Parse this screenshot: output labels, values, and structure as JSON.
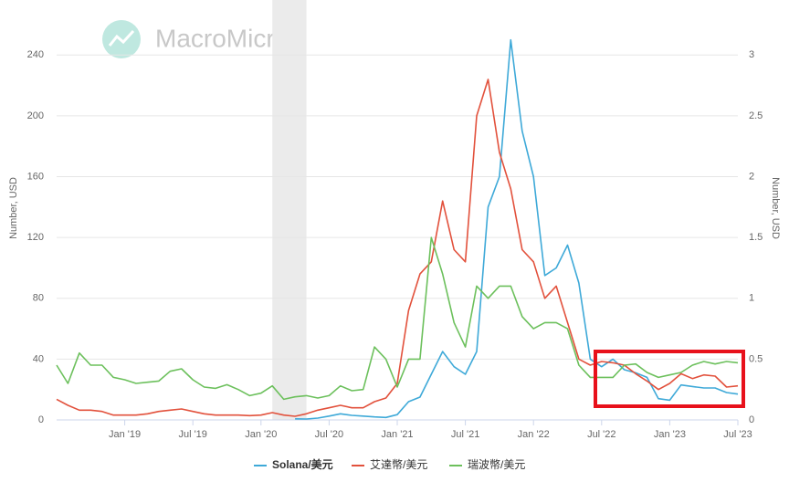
{
  "chart_data": {
    "type": "line",
    "watermark": "MacroMicro",
    "ylabel": "Number, USD",
    "y2label": "Number, USD",
    "x": [
      "2018-07",
      "2018-08",
      "2018-09",
      "2018-10",
      "2018-11",
      "2018-12",
      "2019-01",
      "2019-02",
      "2019-03",
      "2019-04",
      "2019-05",
      "2019-06",
      "2019-07",
      "2019-08",
      "2019-09",
      "2019-10",
      "2019-11",
      "2019-12",
      "2020-01",
      "2020-02",
      "2020-03",
      "2020-04",
      "2020-05",
      "2020-06",
      "2020-07",
      "2020-08",
      "2020-09",
      "2020-10",
      "2020-11",
      "2020-12",
      "2021-01",
      "2021-02",
      "2021-03",
      "2021-04",
      "2021-05",
      "2021-06",
      "2021-07",
      "2021-08",
      "2021-09",
      "2021-10",
      "2021-11",
      "2021-12",
      "2022-01",
      "2022-02",
      "2022-03",
      "2022-04",
      "2022-05",
      "2022-06",
      "2022-07",
      "2022-08",
      "2022-09",
      "2022-10",
      "2022-11",
      "2022-12",
      "2023-01",
      "2023-02",
      "2023-03",
      "2023-04",
      "2023-05",
      "2023-06",
      "2023-07"
    ],
    "xlim": [
      "2018-07",
      "2023-07"
    ],
    "xticks": [
      {
        "value": "2019-01",
        "label": "Jan '19"
      },
      {
        "value": "2019-07",
        "label": "Jul '19"
      },
      {
        "value": "2020-01",
        "label": "Jan '20"
      },
      {
        "value": "2020-07",
        "label": "Jul '20"
      },
      {
        "value": "2021-01",
        "label": "Jan '21"
      },
      {
        "value": "2021-07",
        "label": "Jul '21"
      },
      {
        "value": "2022-01",
        "label": "Jan '22"
      },
      {
        "value": "2022-07",
        "label": "Jul '22"
      },
      {
        "value": "2023-01",
        "label": "Jan '23"
      },
      {
        "value": "2023-07",
        "label": "Jul '23"
      }
    ],
    "ylim": [
      0,
      260
    ],
    "yticks": [
      0,
      40,
      80,
      120,
      160,
      200,
      240
    ],
    "y2lim": [
      0,
      3.25
    ],
    "y2ticks": [
      0,
      0.5,
      1,
      1.5,
      2,
      2.5,
      3
    ],
    "grid": true,
    "shaded_region": [
      "2020-02",
      "2020-05"
    ],
    "series": [
      {
        "name": "Solana/美元",
        "color": "#3ea9d8",
        "axis": "y",
        "values": [
          null,
          null,
          null,
          null,
          null,
          null,
          null,
          null,
          null,
          null,
          null,
          null,
          null,
          null,
          null,
          null,
          null,
          null,
          null,
          null,
          null,
          0.7,
          0.6,
          1.2,
          2.5,
          4,
          3,
          2.5,
          2,
          1.6,
          3.5,
          12,
          15,
          30,
          45,
          35,
          30,
          45,
          140,
          160,
          250,
          190,
          160,
          95,
          100,
          115,
          90,
          40,
          35,
          40,
          33,
          31,
          28,
          14,
          13,
          23,
          22,
          21,
          21,
          18,
          17
        ]
      },
      {
        "name": "艾達幣/美元",
        "color": "#e2513c",
        "axis": "y2",
        "values": [
          0.17,
          0.12,
          0.08,
          0.08,
          0.07,
          0.04,
          0.04,
          0.04,
          0.05,
          0.07,
          0.08,
          0.09,
          0.07,
          0.05,
          0.04,
          0.04,
          0.04,
          0.035,
          0.04,
          0.06,
          0.04,
          0.03,
          0.05,
          0.08,
          0.1,
          0.12,
          0.1,
          0.1,
          0.15,
          0.18,
          0.3,
          0.9,
          1.2,
          1.3,
          1.8,
          1.4,
          1.3,
          2.5,
          2.8,
          2.2,
          1.9,
          1.4,
          1.3,
          1.0,
          1.1,
          0.8,
          0.5,
          0.45,
          0.48,
          0.47,
          0.45,
          0.38,
          0.32,
          0.25,
          0.3,
          0.38,
          0.34,
          0.37,
          0.36,
          0.27,
          0.28
        ]
      },
      {
        "name": "瑞波幣/美元",
        "color": "#6cc05c",
        "axis": "y2",
        "values": [
          0.45,
          0.3,
          0.55,
          0.45,
          0.45,
          0.35,
          0.33,
          0.3,
          0.31,
          0.32,
          0.4,
          0.42,
          0.33,
          0.27,
          0.26,
          0.29,
          0.25,
          0.2,
          0.22,
          0.28,
          0.17,
          0.19,
          0.2,
          0.18,
          0.2,
          0.28,
          0.24,
          0.25,
          0.6,
          0.5,
          0.27,
          0.5,
          0.5,
          1.5,
          1.2,
          0.8,
          0.6,
          1.1,
          1.0,
          1.1,
          1.1,
          0.85,
          0.75,
          0.8,
          0.8,
          0.75,
          0.45,
          0.35,
          0.35,
          0.35,
          0.45,
          0.46,
          0.39,
          0.35,
          0.37,
          0.39,
          0.45,
          0.48,
          0.46,
          0.48,
          0.47
        ]
      }
    ]
  }
}
